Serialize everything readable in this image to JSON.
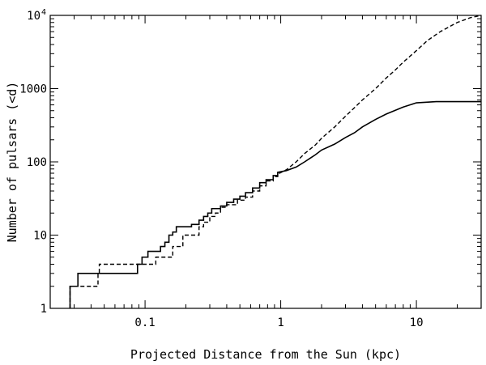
{
  "chart_data": {
    "type": "line",
    "title": "",
    "xlabel": "Projected Distance from the Sun (kpc)",
    "ylabel": "Number of pulsars (<d)",
    "xscale": "log",
    "yscale": "log",
    "xlim": [
      0.02,
      30
    ],
    "ylim": [
      1,
      10000
    ],
    "grid": false,
    "x_ticks": [
      {
        "value": 0.1,
        "label": "0.1"
      },
      {
        "value": 1,
        "label": "1"
      },
      {
        "value": 10,
        "label": "10"
      }
    ],
    "y_ticks": [
      {
        "value": 1,
        "label": "1",
        "sup": ""
      },
      {
        "value": 10,
        "label": "10",
        "sup": ""
      },
      {
        "value": 100,
        "label": "100",
        "sup": ""
      },
      {
        "value": 1000,
        "label": "1000",
        "sup": ""
      },
      {
        "value": 10000,
        "label": "10",
        "sup": "4"
      }
    ],
    "series": [
      {
        "style": "solid",
        "step": true,
        "points": [
          [
            0.028,
            1
          ],
          [
            0.028,
            2
          ],
          [
            0.032,
            2
          ],
          [
            0.032,
            3
          ],
          [
            0.088,
            3
          ],
          [
            0.088,
            4
          ],
          [
            0.095,
            4
          ],
          [
            0.095,
            5
          ],
          [
            0.105,
            5
          ],
          [
            0.105,
            6
          ],
          [
            0.13,
            6
          ],
          [
            0.13,
            7
          ],
          [
            0.14,
            7
          ],
          [
            0.14,
            8
          ],
          [
            0.15,
            8
          ],
          [
            0.15,
            10
          ],
          [
            0.16,
            10
          ],
          [
            0.16,
            11
          ],
          [
            0.17,
            11
          ],
          [
            0.17,
            13
          ],
          [
            0.22,
            13
          ],
          [
            0.22,
            14
          ],
          [
            0.25,
            14
          ],
          [
            0.25,
            16
          ],
          [
            0.27,
            16
          ],
          [
            0.27,
            18
          ],
          [
            0.29,
            18
          ],
          [
            0.29,
            20
          ],
          [
            0.31,
            20
          ],
          [
            0.31,
            23
          ],
          [
            0.36,
            23
          ],
          [
            0.36,
            25
          ],
          [
            0.4,
            25
          ],
          [
            0.4,
            28
          ],
          [
            0.45,
            28
          ],
          [
            0.45,
            31
          ],
          [
            0.5,
            31
          ],
          [
            0.5,
            34
          ],
          [
            0.55,
            34
          ],
          [
            0.55,
            38
          ],
          [
            0.62,
            38
          ],
          [
            0.62,
            44
          ],
          [
            0.7,
            44
          ],
          [
            0.7,
            52
          ],
          [
            0.78,
            52
          ],
          [
            0.78,
            57
          ],
          [
            0.88,
            57
          ],
          [
            0.88,
            65
          ],
          [
            0.95,
            65
          ],
          [
            0.95,
            72
          ],
          [
            1.1,
            76
          ],
          [
            1.3,
            85
          ],
          [
            1.5,
            100
          ],
          [
            1.8,
            125
          ],
          [
            2.0,
            145
          ],
          [
            2.5,
            175
          ],
          [
            3.0,
            215
          ],
          [
            3.5,
            250
          ],
          [
            4.0,
            300
          ],
          [
            5.0,
            380
          ],
          [
            6.0,
            450
          ],
          [
            8.0,
            560
          ],
          [
            10.0,
            640
          ],
          [
            14.0,
            665
          ],
          [
            30.0,
            665
          ]
        ]
      },
      {
        "style": "dashed",
        "step": true,
        "points": [
          [
            0.028,
            1
          ],
          [
            0.028,
            2
          ],
          [
            0.045,
            2
          ],
          [
            0.045,
            3
          ],
          [
            0.046,
            3
          ],
          [
            0.046,
            4
          ],
          [
            0.12,
            4
          ],
          [
            0.12,
            5
          ],
          [
            0.16,
            5
          ],
          [
            0.16,
            7
          ],
          [
            0.19,
            7
          ],
          [
            0.19,
            10
          ],
          [
            0.25,
            10
          ],
          [
            0.25,
            13
          ],
          [
            0.27,
            13
          ],
          [
            0.27,
            15
          ],
          [
            0.3,
            15
          ],
          [
            0.3,
            18
          ],
          [
            0.33,
            18
          ],
          [
            0.33,
            20
          ],
          [
            0.36,
            20
          ],
          [
            0.36,
            24
          ],
          [
            0.4,
            24
          ],
          [
            0.4,
            26
          ],
          [
            0.48,
            26
          ],
          [
            0.48,
            30
          ],
          [
            0.55,
            30
          ],
          [
            0.55,
            33
          ],
          [
            0.62,
            33
          ],
          [
            0.62,
            40
          ],
          [
            0.7,
            40
          ],
          [
            0.7,
            47
          ],
          [
            0.78,
            47
          ],
          [
            0.78,
            55
          ],
          [
            0.88,
            55
          ],
          [
            0.88,
            63
          ],
          [
            0.95,
            63
          ],
          [
            0.95,
            68
          ],
          [
            1.1,
            78
          ],
          [
            1.3,
            100
          ],
          [
            1.5,
            130
          ],
          [
            1.8,
            170
          ],
          [
            2.0,
            210
          ],
          [
            2.5,
            300
          ],
          [
            3.0,
            420
          ],
          [
            3.5,
            550
          ],
          [
            4.0,
            700
          ],
          [
            5.0,
            1000
          ],
          [
            6.0,
            1400
          ],
          [
            7.0,
            1800
          ],
          [
            8.0,
            2300
          ],
          [
            10.0,
            3300
          ],
          [
            12.0,
            4500
          ],
          [
            15.0,
            6000
          ],
          [
            20.0,
            8000
          ],
          [
            25.0,
            9300
          ],
          [
            30.0,
            10000
          ]
        ]
      }
    ]
  }
}
